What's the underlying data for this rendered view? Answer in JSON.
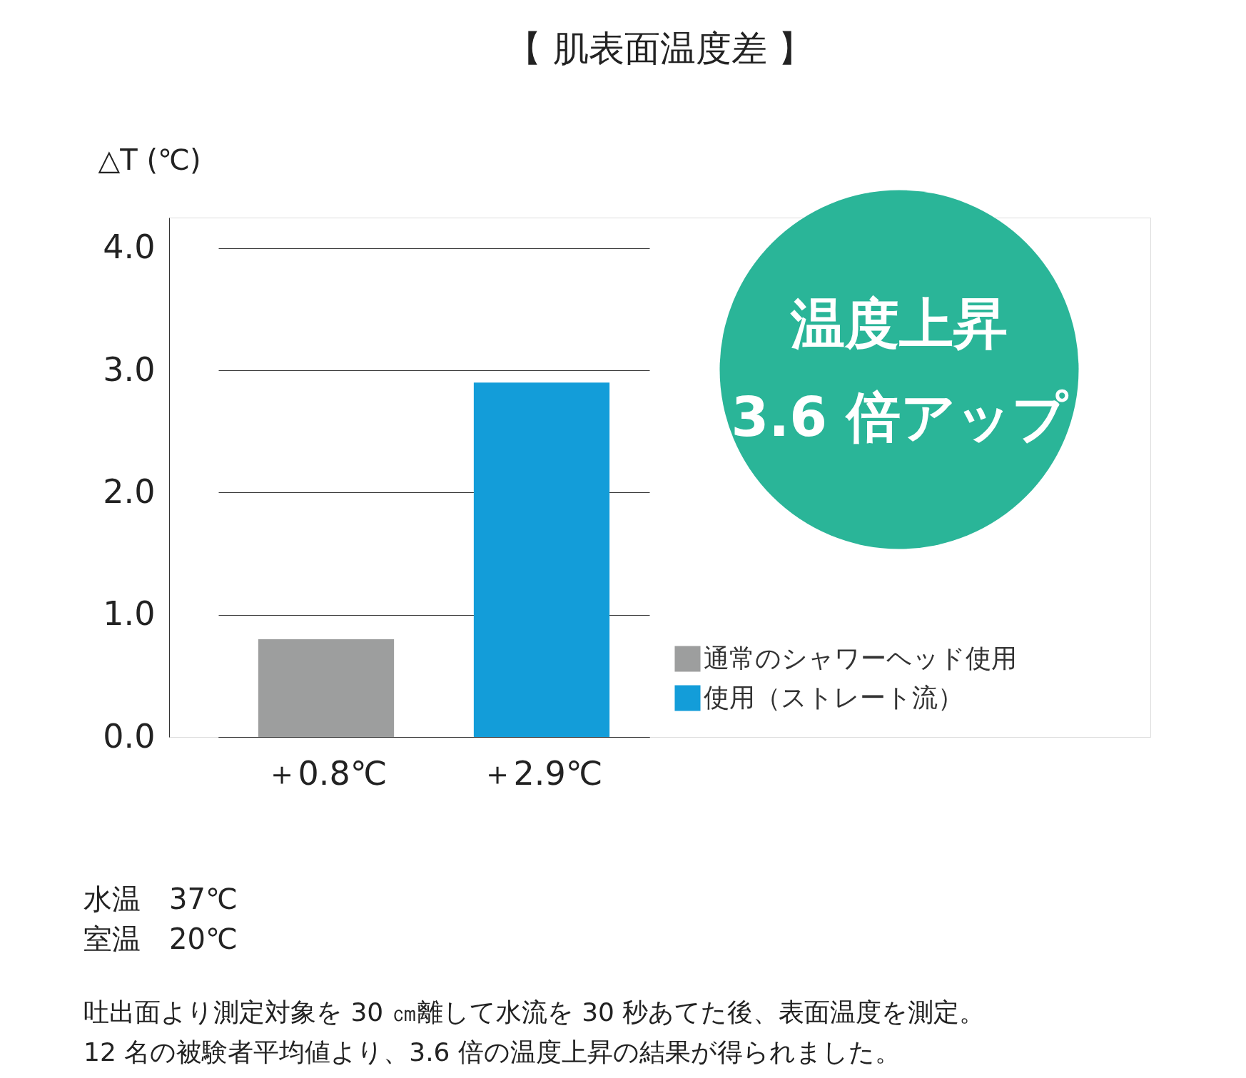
{
  "chart_data": {
    "type": "bar",
    "title": "【 肌表面温度差 】",
    "ylabel": "△T (℃)",
    "categories": [
      "＋0.8℃",
      "＋2.9℃"
    ],
    "series": [
      {
        "name": "通常のシャワーヘッド使用",
        "color": "#9d9e9e",
        "values": [
          0.8,
          null
        ]
      },
      {
        "name": "使用（ストレート流）",
        "color": "#139dd9",
        "values": [
          null,
          2.9
        ]
      }
    ],
    "ylim": [
      0,
      4.25
    ],
    "yticks": [
      {
        "value": 0,
        "label": "0.0"
      },
      {
        "value": 1,
        "label": "1.0"
      },
      {
        "value": 2,
        "label": "2.0"
      },
      {
        "value": 3,
        "label": "3.0"
      },
      {
        "value": 4,
        "label": "4.0"
      }
    ],
    "grid": "y",
    "legend": "bottom right",
    "annotations": [
      "温度上昇",
      "3.6 倍アップ",
      "水温　37℃",
      "室温　20℃",
      "吐出面より測定対象を 30 ㎝離して水流を 30 秒あてた後、表面温度を測定。",
      "12 名の被験者平均値より、3.6 倍の温度上昇の結果が得られました。"
    ]
  }
}
